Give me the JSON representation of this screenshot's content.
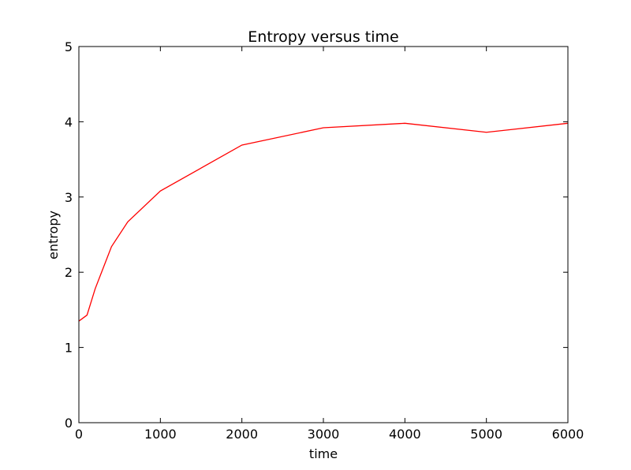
{
  "chart_data": {
    "type": "line",
    "title": "Entropy versus time",
    "xlabel": "time",
    "ylabel": "entropy",
    "xlim": [
      0,
      6000
    ],
    "ylim": [
      0,
      5
    ],
    "xticks": [
      0,
      1000,
      2000,
      3000,
      4000,
      5000,
      6000
    ],
    "yticks": [
      0,
      1,
      2,
      3,
      4,
      5
    ],
    "grid": false,
    "legend": "none",
    "series": [
      {
        "color": "#ff0000",
        "x": [
          0,
          100,
          200,
          400,
          600,
          1000,
          2000,
          3000,
          4000,
          5000,
          6000
        ],
        "y": [
          1.35,
          1.43,
          1.78,
          2.34,
          2.67,
          3.08,
          3.69,
          3.92,
          3.98,
          3.86,
          3.98
        ]
      }
    ]
  }
}
